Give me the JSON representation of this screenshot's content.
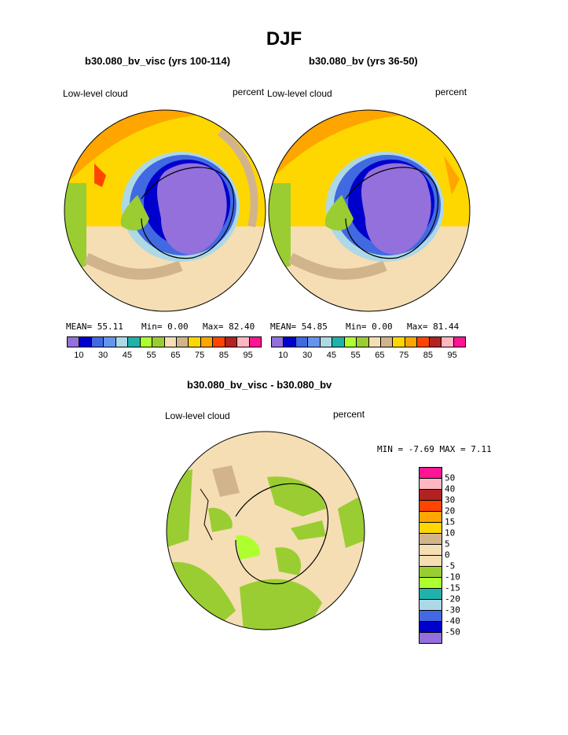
{
  "season": "DJF",
  "panels": [
    {
      "case": "b30.080_bv_visc (yrs 100-114)",
      "variable": "Low-level cloud",
      "units": "percent",
      "mean": "MEAN= 55.11",
      "min": "Min= 0.00",
      "max": "Max= 82.40"
    },
    {
      "case": "b30.080_bv (yrs 36-50)",
      "variable": "Low-level cloud",
      "units": "percent",
      "mean": "MEAN= 54.85",
      "min": "Min= 0.00",
      "max": "Max= 81.44"
    }
  ],
  "diff": {
    "title": "b30.080_bv_visc - b30.080_bv",
    "variable": "Low-level cloud",
    "units": "percent",
    "minmax": "MIN = -7.69 MAX = 7.11"
  },
  "colorbar_levels": [
    "10",
    "30",
    "45",
    "55",
    "65",
    "75",
    "85",
    "95"
  ],
  "colorbar_colors": [
    "#9370db",
    "#0000cd",
    "#4169e1",
    "#6495ed",
    "#add8e6",
    "#20b2aa",
    "#adff2f",
    "#9acd32",
    "#f5deb3",
    "#d2b48c",
    "#ffd700",
    "#ffa500",
    "#ff4500",
    "#b22222",
    "#ffb6c1",
    "#ff1493"
  ],
  "diff_levels": [
    "50",
    "40",
    "30",
    "20",
    "15",
    "10",
    "5",
    "0",
    "-5",
    "-10",
    "-15",
    "-20",
    "-30",
    "-40",
    "-50"
  ],
  "diff_colors": [
    "#ff1493",
    "#ffb6c1",
    "#b22222",
    "#ff4500",
    "#ffa500",
    "#ffd700",
    "#d2b48c",
    "#f5deb3",
    "#f5deb3",
    "#9acd32",
    "#adff2f",
    "#20b2aa",
    "#add8e6",
    "#4169e1",
    "#0000cd",
    "#9370db"
  ]
}
